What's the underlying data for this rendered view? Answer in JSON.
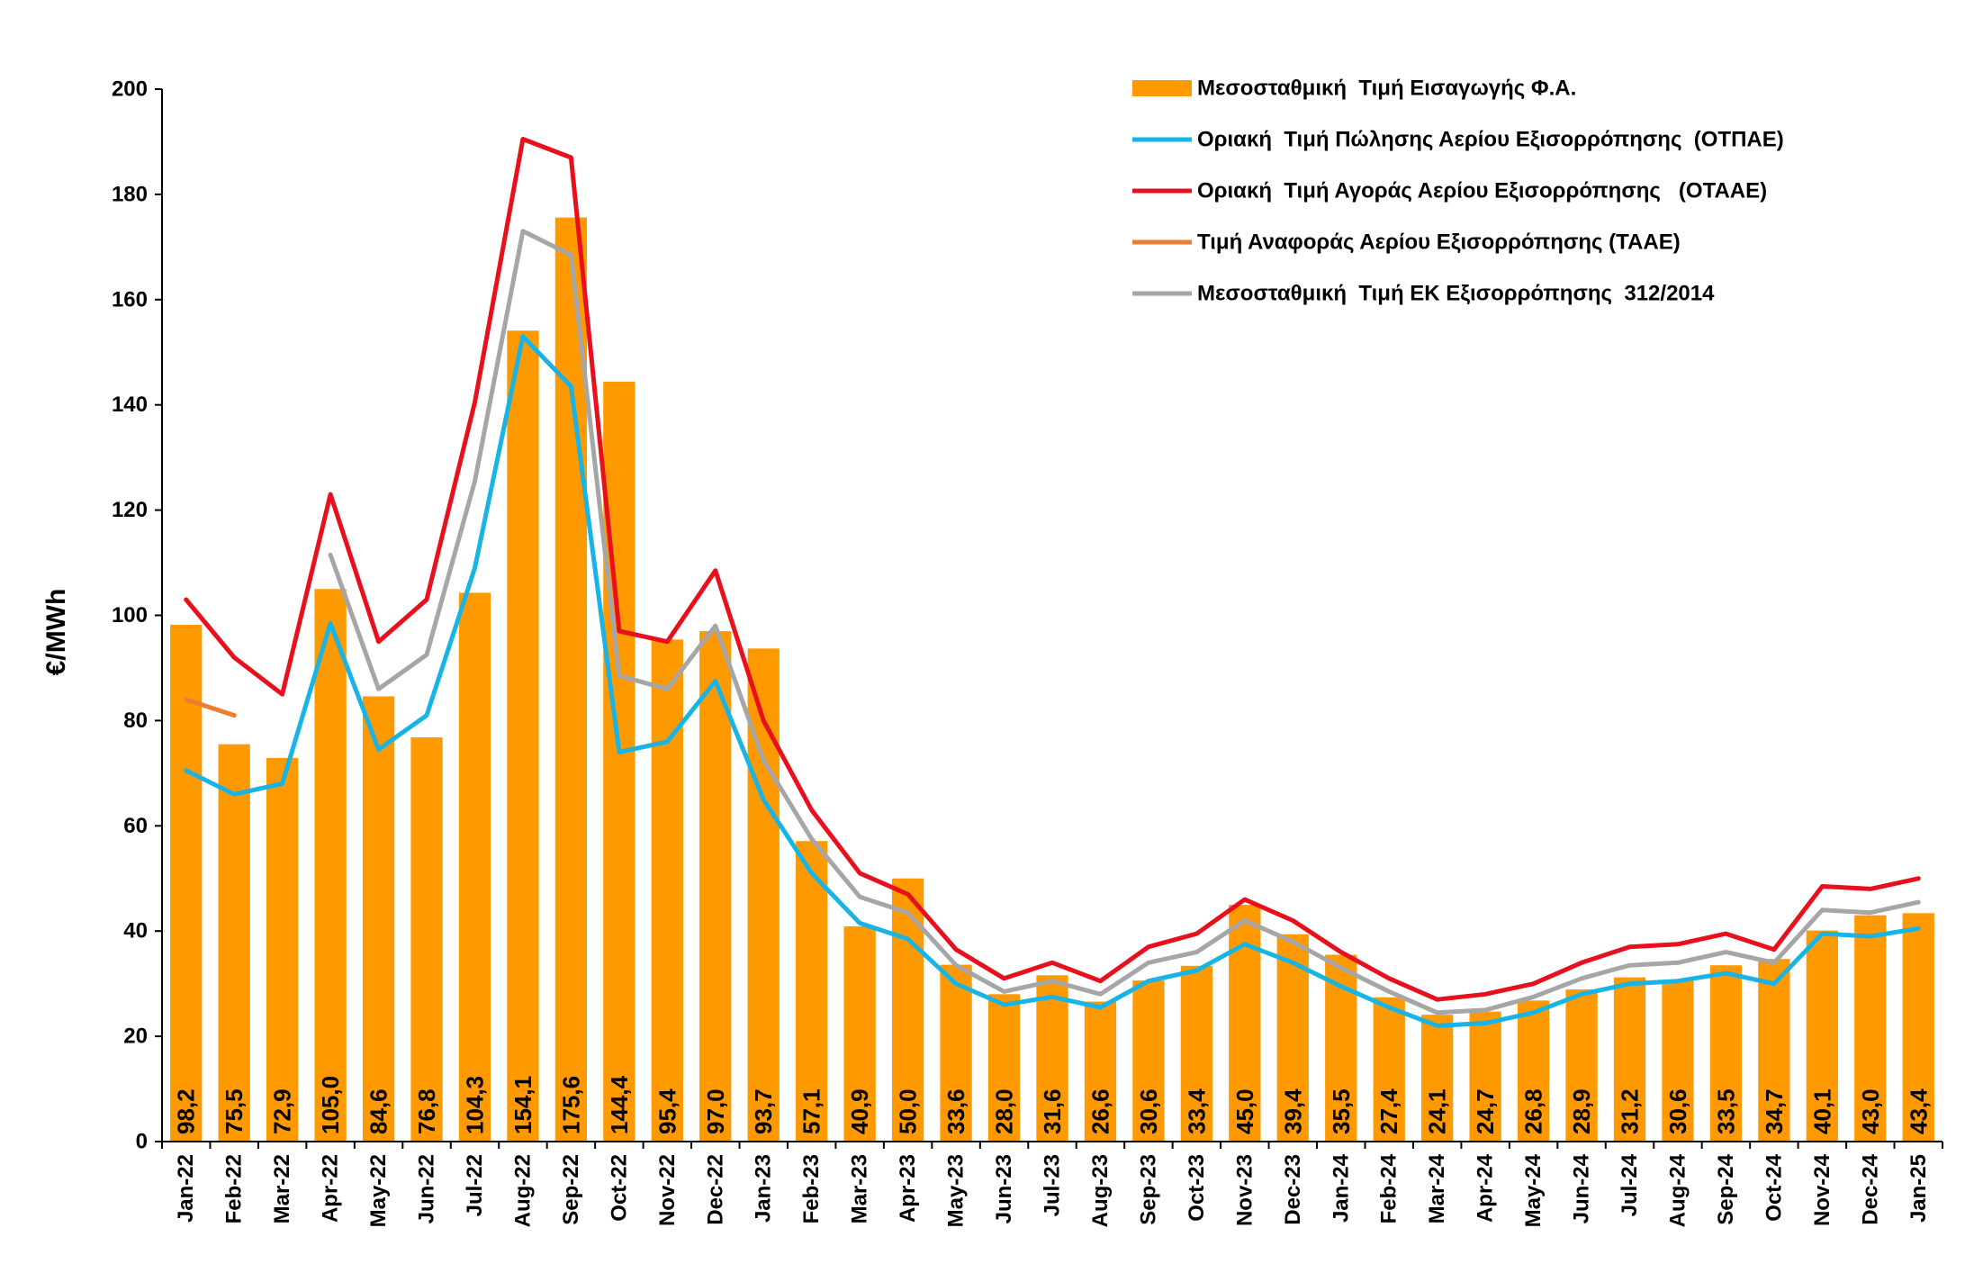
{
  "chart_data": {
    "type": "bar",
    "ylabel": "€/MWh",
    "xlabel": "",
    "ylim": [
      0,
      200
    ],
    "yticks": [
      0,
      20,
      40,
      60,
      80,
      100,
      120,
      140,
      160,
      180,
      200
    ],
    "grid": false,
    "legend_position": "top-right",
    "categories": [
      "Jan-22",
      "Feb-22",
      "Mar-22",
      "Apr-22",
      "May-22",
      "Jun-22",
      "Jul-22",
      "Aug-22",
      "Sep-22",
      "Oct-22",
      "Nov-22",
      "Dec-22",
      "Jan-23",
      "Feb-23",
      "Mar-23",
      "Apr-23",
      "May-23",
      "Jun-23",
      "Jul-23",
      "Aug-23",
      "Sep-23",
      "Oct-23",
      "Nov-23",
      "Dec-23",
      "Jan-24",
      "Feb-24",
      "Mar-24",
      "Apr-24",
      "May-24",
      "Jun-24",
      "Jul-24",
      "Aug-24",
      "Sep-24",
      "Oct-24",
      "Nov-24",
      "Dec-24",
      "Jan-25"
    ],
    "bar_value_labels": [
      "98,2",
      "75,5",
      "72,9",
      "105,0",
      "84,6",
      "76,8",
      "104,3",
      "154,1",
      "175,6",
      "144,4",
      "95,4",
      "97,0",
      "93,7",
      "57,1",
      "40,9",
      "50,0",
      "33,6",
      "28,0",
      "31,6",
      "26,6",
      "30,6",
      "33,4",
      "45,0",
      "39,4",
      "35,5",
      "27,4",
      "24,1",
      "24,7",
      "26,8",
      "28,9",
      "31,2",
      "30,6",
      "33,5",
      "34,7",
      "40,1",
      "43,0",
      "43,4"
    ],
    "series": [
      {
        "name": "Μεσοσταθμική  Τιμή Εισαγωγής Φ.Α.",
        "kind": "bar",
        "color": "#FF9900",
        "values": [
          98.2,
          75.5,
          72.9,
          105.0,
          84.6,
          76.8,
          104.3,
          154.1,
          175.6,
          144.4,
          95.4,
          97.0,
          93.7,
          57.1,
          40.9,
          50.0,
          33.6,
          28.0,
          31.6,
          26.6,
          30.6,
          33.4,
          45.0,
          39.4,
          35.5,
          27.4,
          24.1,
          24.7,
          26.8,
          28.9,
          31.2,
          30.6,
          33.5,
          34.7,
          40.1,
          43.0,
          43.4
        ]
      },
      {
        "name": "Οριακή  Τιμή Πώλησης Αερίου Εξισορρόπησης  (ΟΤΠΑΕ)",
        "kind": "line",
        "color": "#19B4E6",
        "values": [
          70.5,
          66.0,
          68.0,
          98.5,
          74.5,
          81.0,
          109.0,
          153.0,
          143.5,
          74.0,
          76.0,
          87.5,
          65.0,
          51.0,
          41.5,
          38.5,
          30.0,
          26.0,
          27.5,
          25.5,
          30.5,
          32.5,
          37.5,
          34.0,
          29.5,
          25.5,
          22.0,
          22.5,
          24.5,
          28.0,
          30.0,
          30.5,
          32.0,
          30.0,
          39.5,
          39.0,
          40.5
        ]
      },
      {
        "name": "Οριακή  Τιμή Αγοράς Αερίου Εξισορρόπησης   (ΟΤΑΑΕ)",
        "kind": "line",
        "color": "#E8101C",
        "values": [
          103.0,
          92.0,
          85.0,
          123.0,
          95.0,
          103.0,
          140.5,
          190.5,
          187.0,
          97.0,
          95.0,
          108.5,
          80.0,
          63.0,
          51.0,
          47.0,
          36.5,
          31.0,
          34.0,
          30.5,
          37.0,
          39.5,
          46.0,
          42.0,
          36.0,
          31.0,
          27.0,
          28.0,
          30.0,
          34.0,
          37.0,
          37.5,
          39.5,
          36.5,
          48.5,
          48.0,
          50.0
        ]
      },
      {
        "name": "Τιμή Αναφοράς Αερίου Εξισορρόπησης (ΤΑΑΕ)",
        "kind": "line",
        "color": "#ED7D31",
        "values": [
          84.0,
          81.0,
          null,
          null,
          null,
          null,
          null,
          null,
          null,
          null,
          null,
          null,
          null,
          null,
          null,
          null,
          null,
          null,
          null,
          null,
          null,
          null,
          null,
          null,
          null,
          null,
          null,
          null,
          null,
          null,
          null,
          null,
          null,
          null,
          null,
          null,
          null
        ]
      },
      {
        "name": "Μεσοσταθμική  Τιμή ΕΚ Εξισορρόπησης  312/2014",
        "kind": "line",
        "color": "#A6A6A6",
        "values": [
          null,
          null,
          null,
          111.5,
          86.0,
          92.5,
          125.5,
          173.0,
          168.5,
          88.5,
          86.0,
          98.0,
          72.5,
          57.5,
          46.5,
          43.5,
          33.5,
          28.5,
          30.5,
          28.0,
          34.0,
          36.0,
          42.0,
          38.0,
          33.0,
          28.5,
          24.5,
          25.0,
          27.5,
          31.0,
          33.5,
          34.0,
          36.0,
          34.0,
          44.0,
          43.5,
          45.5
        ]
      }
    ]
  }
}
